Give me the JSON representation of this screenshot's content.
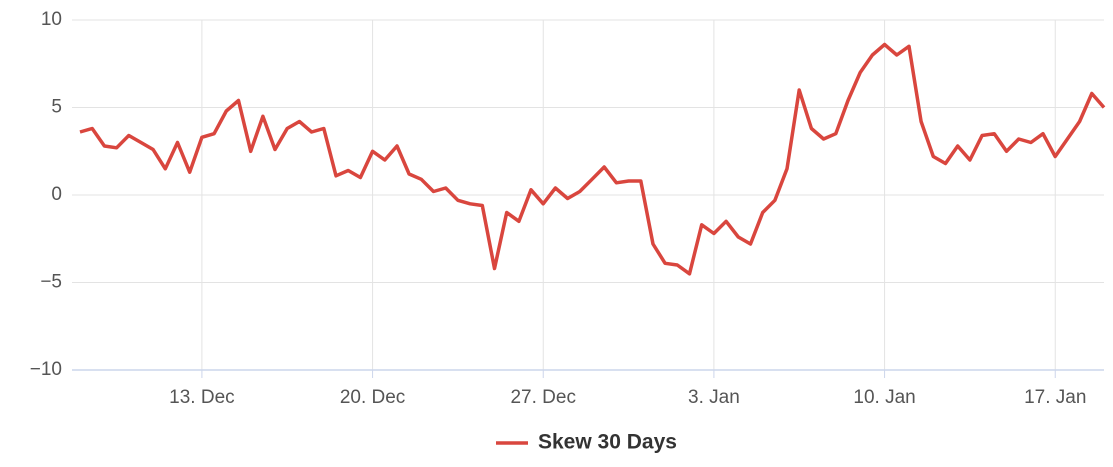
{
  "chart_data": {
    "type": "line",
    "categories": [
      null,
      null,
      null,
      null,
      null,
      null,
      null,
      null,
      null,
      null,
      "13. Dec",
      null,
      null,
      null,
      null,
      null,
      null,
      null,
      null,
      null,
      null,
      null,
      null,
      null,
      "20. Dec",
      null,
      null,
      null,
      null,
      null,
      null,
      null,
      null,
      null,
      null,
      null,
      null,
      null,
      "27. Dec",
      null,
      null,
      null,
      null,
      null,
      null,
      null,
      null,
      null,
      null,
      null,
      null,
      null,
      "3. Jan",
      null,
      null,
      null,
      null,
      null,
      null,
      null,
      null,
      null,
      null,
      null,
      null,
      null,
      "10. Jan",
      null,
      null,
      null,
      null,
      null,
      null,
      null,
      null,
      null,
      null,
      null,
      null,
      null,
      "17. Jan",
      null,
      null,
      null,
      null
    ],
    "series": [
      {
        "name": "Skew 30 Days",
        "color": "#d9463e",
        "values": [
          3.6,
          3.8,
          2.8,
          2.7,
          3.4,
          3.0,
          2.6,
          1.5,
          3.0,
          1.3,
          3.3,
          3.5,
          4.8,
          5.4,
          2.5,
          4.5,
          2.6,
          3.8,
          4.2,
          3.6,
          3.8,
          1.1,
          1.4,
          1.0,
          2.5,
          2.0,
          2.8,
          1.2,
          0.9,
          0.2,
          0.4,
          -0.3,
          -0.5,
          -0.6,
          -4.2,
          -1.0,
          -1.5,
          0.3,
          -0.5,
          0.4,
          -0.2,
          0.2,
          0.9,
          1.6,
          0.7,
          0.8,
          0.8,
          -2.8,
          -3.9,
          -4.0,
          -4.5,
          -1.7,
          -2.2,
          -1.5,
          -2.4,
          -2.8,
          -1.0,
          -0.3,
          1.5,
          6.0,
          3.8,
          3.2,
          3.5,
          5.4,
          7.0,
          8.0,
          8.6,
          8.0,
          8.5,
          4.2,
          2.2,
          1.8,
          2.8,
          2.0,
          3.4,
          3.5,
          2.5,
          3.2,
          3.0,
          3.5,
          2.2,
          3.2,
          4.2,
          5.8,
          5.0
        ]
      }
    ],
    "ylim": [
      -10,
      10
    ],
    "yticks": [
      {
        "value": -10,
        "label": "−10"
      },
      {
        "value": -5,
        "label": "−5"
      },
      0,
      5,
      10
    ],
    "grid": true,
    "legend": "bottom"
  }
}
